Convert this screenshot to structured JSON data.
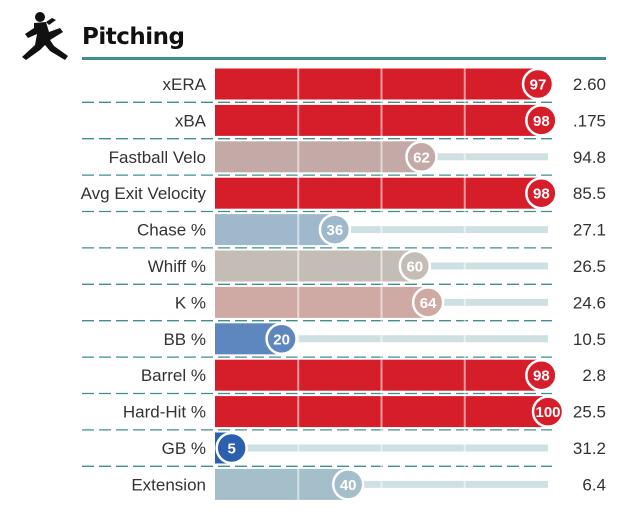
{
  "title": "Pitching",
  "icon": "pitcher-silhouette-icon",
  "chart_data": {
    "type": "bar",
    "orientation": "horizontal",
    "xlim": [
      0,
      100
    ],
    "gridlines": [
      25,
      50,
      75
    ],
    "categories": [
      "xERA",
      "xBA",
      "Fastball Velo",
      "Avg Exit Velocity",
      "Chase %",
      "Whiff %",
      "K %",
      "BB %",
      "Barrel %",
      "Hard-Hit %",
      "GB %",
      "Extension"
    ],
    "percentiles": [
      97,
      98,
      62,
      98,
      36,
      60,
      64,
      20,
      98,
      100,
      5,
      40
    ],
    "values": [
      "2.60",
      ".175",
      "94.8",
      "85.5",
      "27.1",
      "26.5",
      "24.6",
      "10.5",
      "2.8",
      "25.5",
      "31.2",
      "6.4"
    ],
    "bar_colors": [
      "#d61e2a",
      "#d61e2a",
      "#c4aaa6",
      "#d61e2a",
      "#9fb8cb",
      "#c3bdb6",
      "#cfaaa4",
      "#5f87bf",
      "#d61e2a",
      "#d61e2a",
      "#2b5faf",
      "#a5bfca"
    ],
    "circle_border_color": "#ffffff",
    "track_color": "#cfe0e3",
    "separator_color": "#3f8f8f"
  }
}
